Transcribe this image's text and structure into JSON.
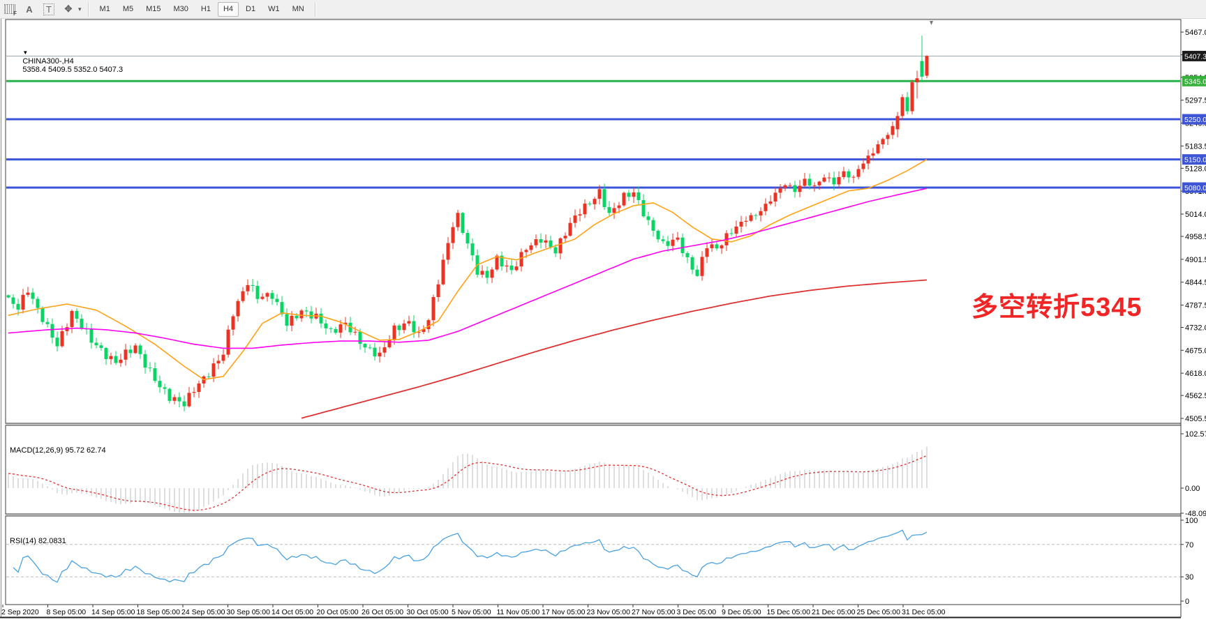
{
  "toolbar": {
    "icons": [
      {
        "name": "templates-grid-icon",
        "glyph": "F"
      },
      {
        "name": "text-label-icon",
        "glyph": "A"
      },
      {
        "name": "text-box-icon",
        "glyph": "T"
      },
      {
        "name": "arrow-tools-icon",
        "glyph": "✥"
      },
      {
        "name": "dropdown-caret-icon",
        "glyph": "▾"
      }
    ],
    "timeframes": [
      "M1",
      "M5",
      "M15",
      "M30",
      "H1",
      "H4",
      "D1",
      "W1",
      "MN"
    ],
    "active": "H4"
  },
  "main_chart": {
    "dropdown_arrow": "▼",
    "symbol": "CHINA300-,H4",
    "ohlc": "5358.4 5409.5 5352.0 5407.3"
  },
  "annotation": {
    "text": "多空转折5345",
    "color": "#f02525"
  },
  "macd_panel": {
    "label": "MACD(12,26,9) 95.72 62.74",
    "ticks": [
      "102.57",
      "0.00",
      "-48.09"
    ],
    "tick_values": [
      102.57,
      0,
      -48.09
    ]
  },
  "rsi_panel": {
    "label": "RSI(14) 82.0831",
    "ticks": [
      "100",
      "70",
      "30",
      "0"
    ],
    "tick_values": [
      100,
      70,
      30,
      0
    ],
    "levels": [
      70,
      30
    ]
  },
  "colors": {
    "up_candle": "#ec3323",
    "down_candle": "#0bd466",
    "ma_fast": "#ffa216",
    "ma_mid": "#ff00f2",
    "ma_slow": "#e03030",
    "blue_level": "#3a55d9",
    "green_level": "#27b24b",
    "current_line": "#9aa4ae",
    "badge_black": "#1a1a1a",
    "badge_green": "#35b13c",
    "badge_blue": "#3d55d4",
    "macd_hist": "#c9c9c9",
    "macd_signal": "#e03030",
    "rsi_line": "#4aa2e0",
    "axis_text": "#000000",
    "panel_border": "#3c3c3c"
  },
  "chart_data": {
    "type": "candlestick",
    "symbol": "CHINA300",
    "timeframe": "H4",
    "last_bar": {
      "open": 5358.4,
      "high": 5409.5,
      "low": 5352.0,
      "close": 5407.3
    },
    "price_ticks": [
      "5467.0",
      "5410.5",
      "5354.5",
      "5297.5",
      "5240.5",
      "5183.5",
      "5128.0",
      "5071.0",
      "5014.0",
      "4958.5",
      "4901.5",
      "4844.5",
      "4787.5",
      "4732.0",
      "4675.0",
      "4618.0",
      "4562.5",
      "4505.5"
    ],
    "price_range": {
      "max": 5467.0,
      "min": 4505.5
    },
    "horizontal_levels": {
      "blue": [
        5250.0,
        5150.0,
        5080.0
      ],
      "green": 5345.0,
      "current": 5407.3
    },
    "badges": [
      {
        "label": "5407.3",
        "price": 5407.3,
        "type": "black"
      },
      {
        "label": "5345.0",
        "price": 5345.0,
        "type": "green"
      },
      {
        "label": "5250.0",
        "price": 5250.0,
        "type": "blue"
      },
      {
        "label": "5150.0",
        "price": 5150.0,
        "type": "blue"
      },
      {
        "label": "5080.0",
        "price": 5080.0,
        "type": "blue"
      }
    ],
    "time_labels": [
      "2 Sep 2020",
      "8 Sep 05:00",
      "14 Sep 05:00",
      "18 Sep 05:00",
      "24 Sep 05:00",
      "30 Sep 05:00",
      "14 Oct 05:00",
      "20 Oct 05:00",
      "26 Oct 05:00",
      "30 Oct 05:00",
      "5 Nov 05:00",
      "11 Nov 05:00",
      "17 Nov 05:00",
      "23 Nov 05:00",
      "27 Nov 05:00",
      "3 Dec 05:00",
      "9 Dec 05:00",
      "15 Dec 05:00",
      "21 Dec 05:00",
      "25 Dec 05:00",
      "31 Dec 05:00"
    ],
    "bar_count": 189,
    "closes_waypoints": [
      [
        0,
        4800
      ],
      [
        2,
        4782
      ],
      [
        4,
        4826
      ],
      [
        6,
        4776
      ],
      [
        8,
        4732
      ],
      [
        10,
        4688
      ],
      [
        13,
        4768
      ],
      [
        15,
        4736
      ],
      [
        17,
        4700
      ],
      [
        20,
        4662
      ],
      [
        22,
        4645
      ],
      [
        24,
        4668
      ],
      [
        26,
        4684
      ],
      [
        28,
        4640
      ],
      [
        31,
        4585
      ],
      [
        33,
        4558
      ],
      [
        36,
        4542
      ],
      [
        38,
        4578
      ],
      [
        41,
        4618
      ],
      [
        44,
        4668
      ],
      [
        46,
        4768
      ],
      [
        49,
        4845
      ],
      [
        51,
        4808
      ],
      [
        54,
        4812
      ],
      [
        57,
        4742
      ],
      [
        60,
        4772
      ],
      [
        63,
        4758
      ],
      [
        66,
        4720
      ],
      [
        69,
        4742
      ],
      [
        73,
        4682
      ],
      [
        76,
        4662
      ],
      [
        79,
        4728
      ],
      [
        82,
        4744
      ],
      [
        84,
        4712
      ],
      [
        86,
        4752
      ],
      [
        88,
        4848
      ],
      [
        91,
        4988
      ],
      [
        92,
        5008
      ],
      [
        94,
        4940
      ],
      [
        96,
        4872
      ],
      [
        98,
        4858
      ],
      [
        100,
        4902
      ],
      [
        103,
        4872
      ],
      [
        106,
        4930
      ],
      [
        109,
        4952
      ],
      [
        112,
        4922
      ],
      [
        115,
        4990
      ],
      [
        117,
        5022
      ],
      [
        119,
        5042
      ],
      [
        121,
        5068
      ],
      [
        123,
        5012
      ],
      [
        126,
        5058
      ],
      [
        128,
        5068
      ],
      [
        131,
        4992
      ],
      [
        134,
        4938
      ],
      [
        137,
        4952
      ],
      [
        139,
        4898
      ],
      [
        141,
        4862
      ],
      [
        143,
        4938
      ],
      [
        145,
        4928
      ],
      [
        148,
        4972
      ],
      [
        151,
        5002
      ],
      [
        153,
        5012
      ],
      [
        155,
        5035
      ],
      [
        157,
        5065
      ],
      [
        159,
        5090
      ],
      [
        161,
        5072
      ],
      [
        163,
        5098
      ],
      [
        165,
        5082
      ],
      [
        167,
        5108
      ],
      [
        169,
        5092
      ],
      [
        171,
        5118
      ],
      [
        173,
        5102
      ],
      [
        174,
        5128
      ],
      [
        176,
        5155
      ],
      [
        178,
        5185
      ],
      [
        180,
        5215
      ],
      [
        181,
        5228
      ]
    ],
    "last_bars_ohlc": [
      [
        182,
        5225,
        5268,
        5205,
        5258
      ],
      [
        183,
        5258,
        5312,
        5248,
        5305
      ],
      [
        184,
        5305,
        5318,
        5262,
        5270
      ],
      [
        185,
        5270,
        5348,
        5262,
        5342
      ],
      [
        186,
        5342,
        5371,
        5302,
        5352
      ],
      [
        187,
        5395,
        5458,
        5342,
        5356
      ],
      [
        188,
        5358.4,
        5409.5,
        5352.0,
        5407.3
      ]
    ],
    "ma_fast_waypoints": [
      [
        0,
        4762
      ],
      [
        6,
        4778
      ],
      [
        12,
        4790
      ],
      [
        18,
        4775
      ],
      [
        24,
        4735
      ],
      [
        30,
        4690
      ],
      [
        36,
        4635
      ],
      [
        40,
        4602
      ],
      [
        44,
        4610
      ],
      [
        48,
        4672
      ],
      [
        52,
        4742
      ],
      [
        56,
        4768
      ],
      [
        60,
        4762
      ],
      [
        64,
        4760
      ],
      [
        68,
        4745
      ],
      [
        72,
        4722
      ],
      [
        76,
        4700
      ],
      [
        80,
        4702
      ],
      [
        84,
        4722
      ],
      [
        88,
        4748
      ],
      [
        92,
        4822
      ],
      [
        96,
        4888
      ],
      [
        100,
        4908
      ],
      [
        104,
        4900
      ],
      [
        108,
        4918
      ],
      [
        112,
        4935
      ],
      [
        116,
        4952
      ],
      [
        120,
        4988
      ],
      [
        124,
        5015
      ],
      [
        128,
        5035
      ],
      [
        132,
        5042
      ],
      [
        136,
        5018
      ],
      [
        140,
        4982
      ],
      [
        144,
        4952
      ],
      [
        148,
        4945
      ],
      [
        152,
        4960
      ],
      [
        156,
        4988
      ],
      [
        160,
        5012
      ],
      [
        164,
        5032
      ],
      [
        168,
        5052
      ],
      [
        172,
        5072
      ],
      [
        176,
        5078
      ],
      [
        180,
        5098
      ],
      [
        184,
        5122
      ],
      [
        188,
        5150
      ]
    ],
    "ma_mid_waypoints": [
      [
        0,
        4718
      ],
      [
        8,
        4726
      ],
      [
        14,
        4730
      ],
      [
        20,
        4726
      ],
      [
        26,
        4718
      ],
      [
        32,
        4705
      ],
      [
        38,
        4690
      ],
      [
        44,
        4680
      ],
      [
        50,
        4680
      ],
      [
        56,
        4688
      ],
      [
        62,
        4694
      ],
      [
        68,
        4698
      ],
      [
        74,
        4698
      ],
      [
        80,
        4695
      ],
      [
        86,
        4700
      ],
      [
        92,
        4722
      ],
      [
        98,
        4752
      ],
      [
        104,
        4782
      ],
      [
        110,
        4812
      ],
      [
        116,
        4842
      ],
      [
        122,
        4872
      ],
      [
        128,
        4902
      ],
      [
        134,
        4922
      ],
      [
        140,
        4935
      ],
      [
        146,
        4948
      ],
      [
        152,
        4965
      ],
      [
        158,
        4985
      ],
      [
        164,
        5005
      ],
      [
        170,
        5025
      ],
      [
        176,
        5045
      ],
      [
        182,
        5062
      ],
      [
        188,
        5078
      ]
    ],
    "ma_slow_waypoints": [
      [
        60,
        4506
      ],
      [
        68,
        4532
      ],
      [
        76,
        4558
      ],
      [
        84,
        4584
      ],
      [
        92,
        4612
      ],
      [
        100,
        4642
      ],
      [
        108,
        4672
      ],
      [
        116,
        4700
      ],
      [
        124,
        4726
      ],
      [
        132,
        4750
      ],
      [
        140,
        4772
      ],
      [
        148,
        4792
      ],
      [
        156,
        4810
      ],
      [
        164,
        4824
      ],
      [
        172,
        4835
      ],
      [
        180,
        4843
      ],
      [
        188,
        4850
      ]
    ],
    "macd": {
      "fast": 12,
      "slow": 26,
      "signal": 9,
      "last_macd": 95.72,
      "last_signal": 62.74,
      "axis_max": 102.57,
      "axis_min": -48.09
    },
    "rsi": {
      "period": 14,
      "last_value": 82.0831,
      "axis": [
        100,
        70,
        30,
        0
      ]
    }
  }
}
